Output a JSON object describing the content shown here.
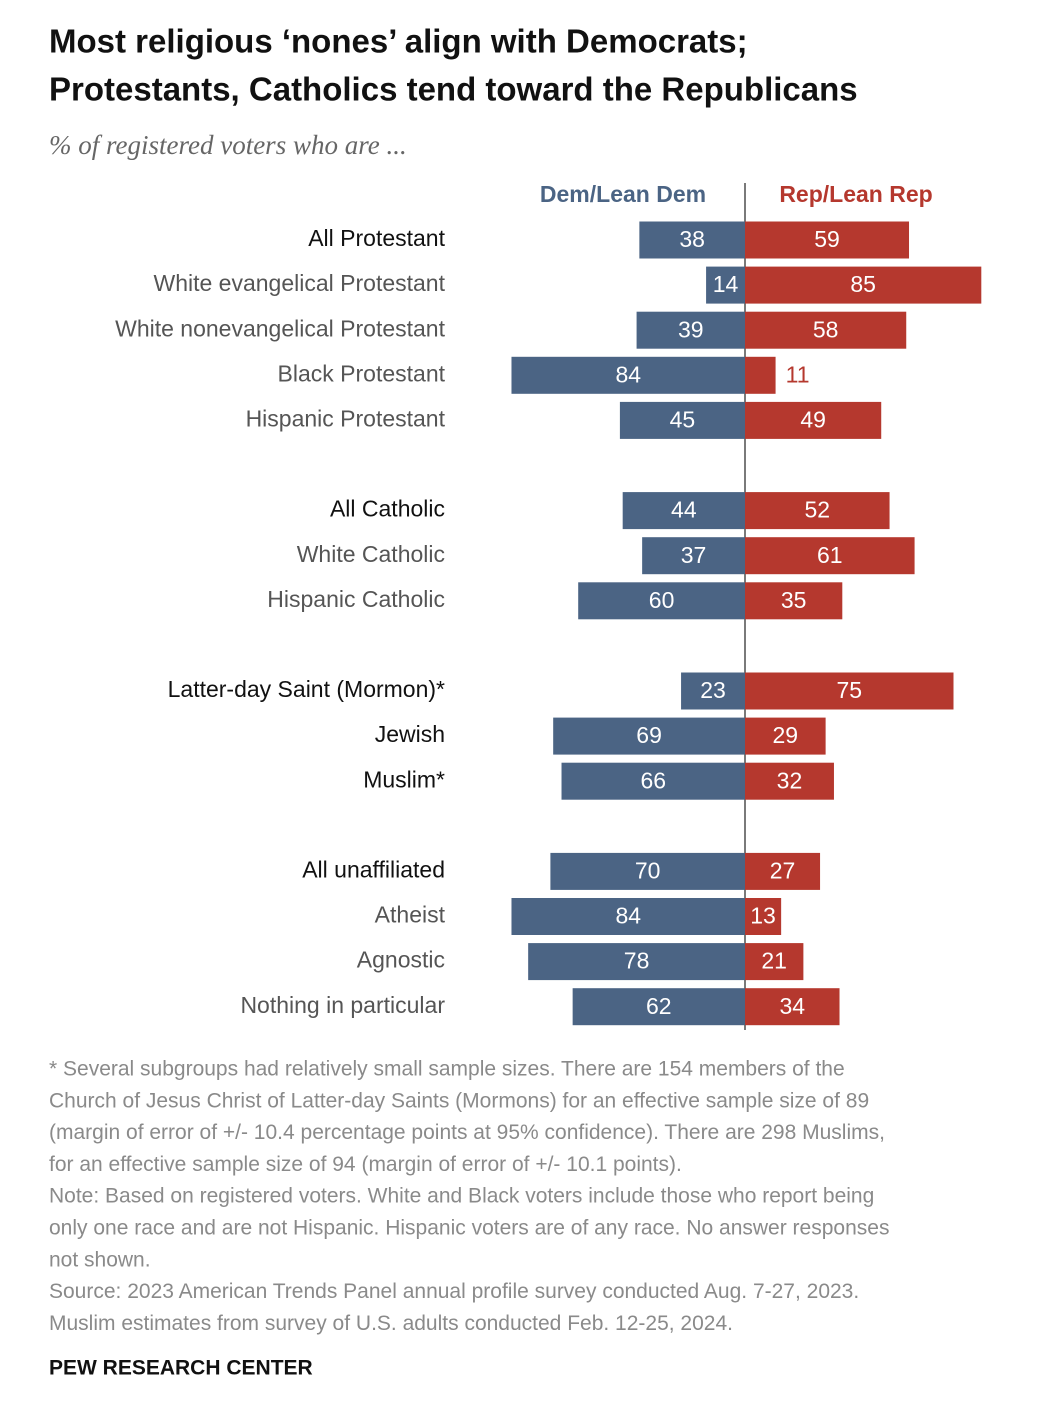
{
  "chart_data": {
    "type": "diverging-bar",
    "title": [
      "Most religious ‘nones’ align with Democrats;",
      "Protestants, Catholics tend toward the Republicans"
    ],
    "subtitle": "% of registered voters who are ...",
    "categories": [
      "All Protestant",
      "White evangelical Protestant",
      "White nonevangelical Protestant",
      "Black Protestant",
      "Hispanic Protestant",
      null,
      "All Catholic",
      "White Catholic",
      "Hispanic Catholic",
      null,
      "Latter-day Saint (Mormon)*",
      "Jewish",
      "Muslim*",
      null,
      "All unaffiliated",
      "Atheist",
      "Agnostic",
      "Nothing in particular"
    ],
    "series": [
      {
        "name": "Dem/Lean Dem",
        "color": "#4b6484",
        "values": [
          38,
          14,
          39,
          84,
          45,
          null,
          44,
          37,
          60,
          null,
          23,
          69,
          66,
          null,
          70,
          84,
          78,
          62
        ]
      },
      {
        "name": "Rep/Lean Rep",
        "color": "#b5382e",
        "values": [
          59,
          85,
          58,
          11,
          49,
          null,
          52,
          61,
          35,
          null,
          75,
          29,
          32,
          null,
          27,
          13,
          21,
          34
        ]
      }
    ],
    "notes": [
      "* Several subgroups had relatively small sample sizes. There are 154 members of the",
      "Church of Jesus Christ of Latter-day Saints (Mormons) for an effective sample size of 89",
      "(margin of error of +/- 10.4 percentage points at 95% confidence). There are 298 Muslims,",
      "for an effective sample size of 94 (margin of error of +/- 10.1 points).",
      "Note: Based on registered voters. White and Black voters include those who report being",
      "only one race and are not Hispanic. Hispanic voters are of any race. No answer responses",
      "not shown.",
      "Source: 2023 American Trends Panel annual profile survey conducted Aug. 7-27, 2023.",
      "Muslim estimates from survey of U.S. adults conducted Feb. 12-25, 2024."
    ],
    "credit": "PEW RESEARCH CENTER"
  }
}
